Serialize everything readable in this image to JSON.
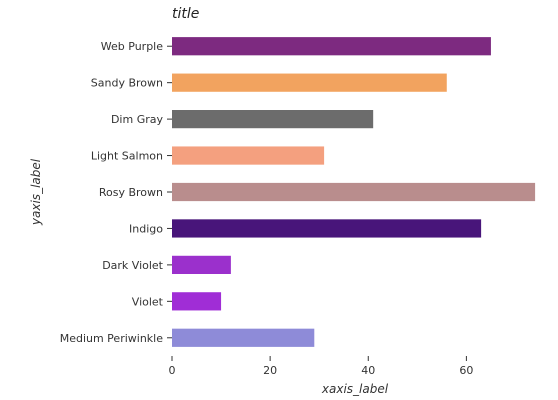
{
  "chart_data": {
    "type": "bar",
    "orientation": "horizontal",
    "title": "title",
    "xlabel": "xaxis_label",
    "ylabel": "yaxis_label",
    "xlim": [
      0,
      75
    ],
    "x_ticks": [
      0,
      20,
      40,
      60
    ],
    "categories": [
      "Medium Periwinkle",
      "Violet",
      "Dark Violet",
      "Indigo",
      "Rosy Brown",
      "Light Salmon",
      "Dim Gray",
      "Sandy Brown",
      "Web Purple"
    ],
    "values": [
      29,
      10,
      12,
      63,
      74,
      31,
      41,
      56,
      65
    ],
    "colors": [
      "#8e8bd8",
      "#a02dd6",
      "#9b30cc",
      "#48157a",
      "#b98d8d",
      "#f4a07f",
      "#6c6c6c",
      "#f2a35f",
      "#7d2a80"
    ],
    "grid": false,
    "legend": "none"
  }
}
